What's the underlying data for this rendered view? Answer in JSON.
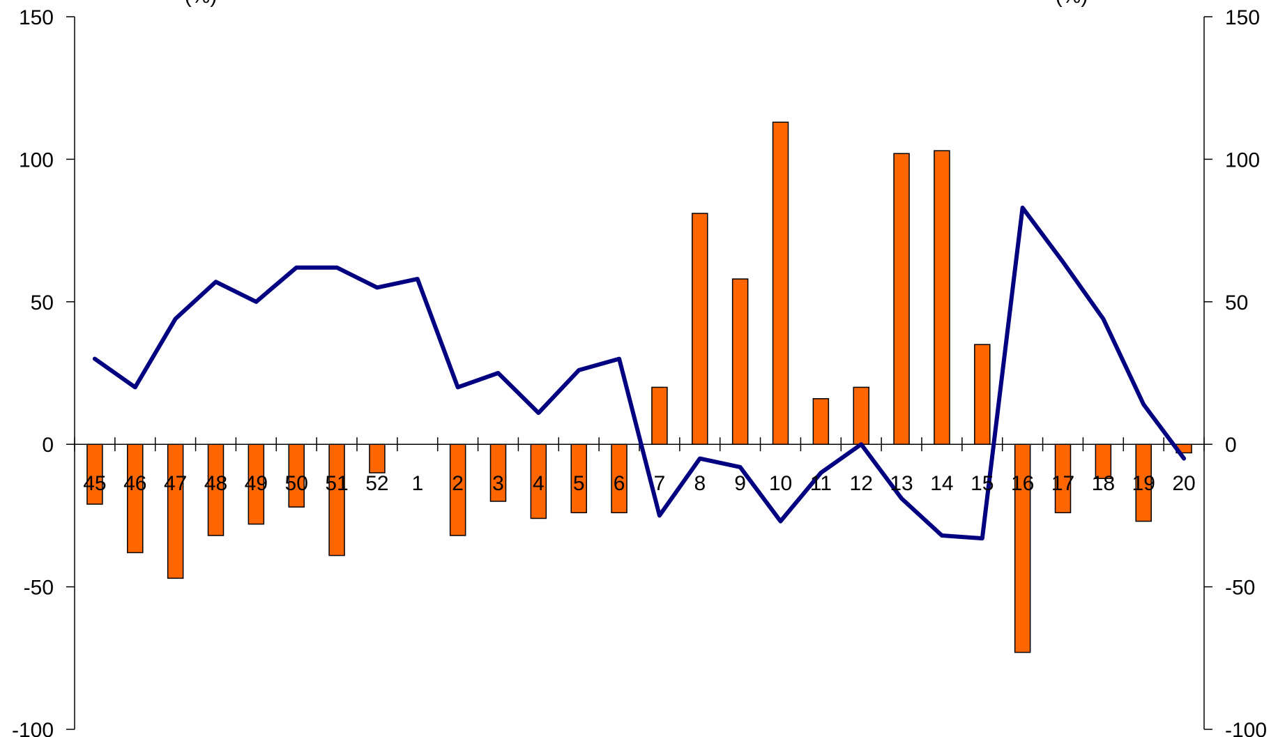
{
  "chart_data": {
    "type": "bar",
    "categories": [
      "45",
      "46",
      "47",
      "48",
      "49",
      "50",
      "51",
      "52",
      "1",
      "2",
      "3",
      "4",
      "5",
      "6",
      "7",
      "8",
      "9",
      "10",
      "11",
      "12",
      "13",
      "14",
      "15",
      "16",
      "17",
      "18",
      "19",
      "20"
    ],
    "series": [
      {
        "type": "bar",
        "axis": "left",
        "color": "#ff6600",
        "values": [
          -21,
          -38,
          -47,
          -32,
          -28,
          -22,
          -39,
          -10,
          0,
          -32,
          -20,
          -26,
          -24,
          -24,
          20,
          81,
          58,
          113,
          16,
          20,
          102,
          103,
          35,
          -73,
          -24,
          -12,
          -27,
          -3
        ]
      },
      {
        "type": "line",
        "axis": "right",
        "color": "#000080",
        "values": [
          30,
          20,
          44,
          57,
          50,
          62,
          62,
          55,
          58,
          20,
          25,
          11,
          26,
          30,
          -25,
          -5,
          -8,
          -27,
          -10,
          0,
          -19,
          -32,
          -33,
          83,
          64,
          44,
          14,
          -5
        ]
      }
    ],
    "y_left": {
      "label": "(%)",
      "ylim": [
        -100,
        150
      ],
      "ticks": [
        150,
        100,
        50,
        0,
        -50,
        -100
      ]
    },
    "y_right": {
      "label": "(%)",
      "ylim": [
        -100,
        150
      ],
      "ticks": [
        150,
        100,
        50,
        0,
        -50,
        -100
      ]
    },
    "grid": false,
    "legend": "none"
  }
}
